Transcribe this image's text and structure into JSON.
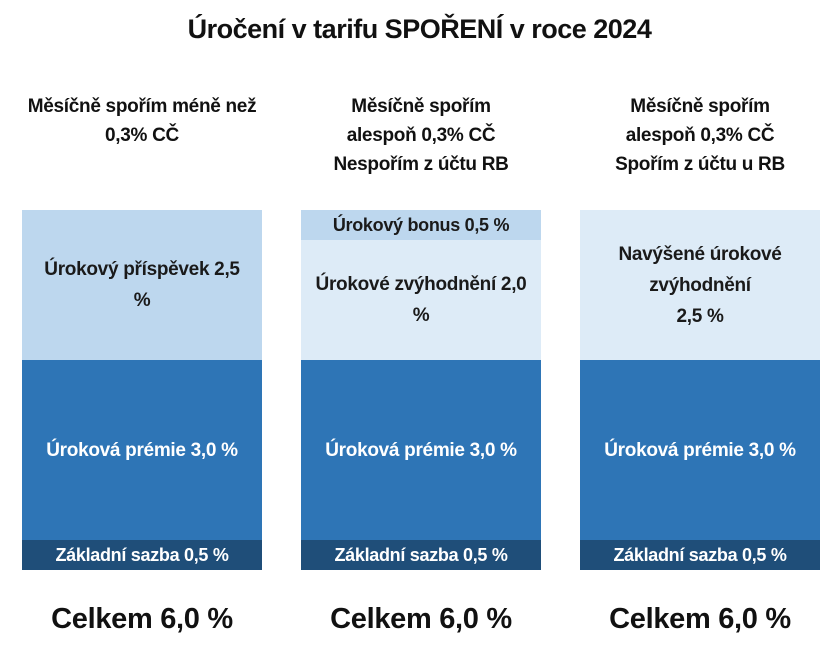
{
  "title": "Úročení v tarifu SPOŘENÍ v roce 2024",
  "chart_data": {
    "type": "bar",
    "stacked": true,
    "title": "Úročení v tarifu SPOŘENÍ v roce 2024",
    "unit": "%",
    "ylim": [
      0,
      6.0
    ],
    "columns": [
      {
        "header": [
          "Měsíčně spořím méně než",
          "0,3% CČ"
        ],
        "segments": [
          {
            "label": "Základní sazba 0,5 %",
            "value": 0.5,
            "color": "#1f4e79"
          },
          {
            "label": "Úroková prémie 3,0 %",
            "value": 3.0,
            "color": "#2e75b6"
          },
          {
            "label": "Úrokový příspěvek 2,5 %",
            "value": 2.5,
            "color": "#bdd7ee"
          }
        ],
        "total": "Celkem 6,0 %"
      },
      {
        "header": [
          "Měsíčně spořím",
          "alespoň 0,3% CČ",
          "Nespořím z účtu RB"
        ],
        "segments": [
          {
            "label": "Základní sazba 0,5 %",
            "value": 0.5,
            "color": "#1f4e79"
          },
          {
            "label": "Úroková prémie 3,0 %",
            "value": 3.0,
            "color": "#2e75b6"
          },
          {
            "label": "Úrokové zvýhodnění 2,0 %",
            "value": 2.0,
            "color": "#ddebf7"
          },
          {
            "label": "Úrokový bonus 0,5 %",
            "value": 0.5,
            "color": "#bdd7ee"
          }
        ],
        "total": "Celkem 6,0 %"
      },
      {
        "header": [
          "Měsíčně spořím",
          "alespoň 0,3% CČ",
          "Spořím z účtu u RB"
        ],
        "segments": [
          {
            "label": "Základní sazba 0,5 %",
            "value": 0.5,
            "color": "#1f4e79"
          },
          {
            "label": "Úroková prémie 3,0 %",
            "value": 3.0,
            "color": "#2e75b6"
          },
          {
            "label": "Navýšené úrokové zvýhodnění 2,5 %",
            "value": 2.5,
            "color": "#ddebf7"
          }
        ],
        "total": "Celkem 6,0 %"
      }
    ]
  }
}
